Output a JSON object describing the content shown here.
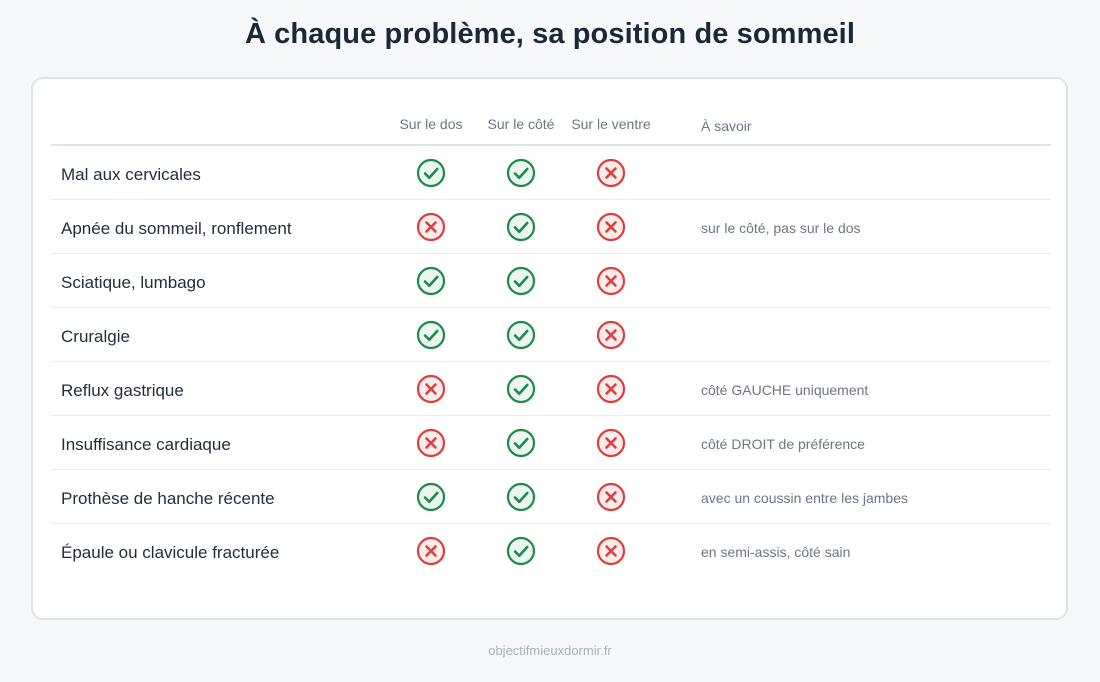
{
  "title": "À chaque problème, sa position de sommeil",
  "columns": [
    "Sur le dos",
    "Sur le côté",
    "Sur le ventre",
    "À savoir"
  ],
  "colors": {
    "yes": "#1f8a4c",
    "yes_fill": "#eaf6ef",
    "no": "#d9413e",
    "no_fill": "#fcecec"
  },
  "icons": {
    "yes": "check-circle-icon",
    "no": "x-circle-icon"
  },
  "rows": [
    {
      "label": "Mal aux cervicales",
      "values": [
        "yes",
        "yes",
        "no"
      ],
      "note": ""
    },
    {
      "label": "Apnée du sommeil, ronflement",
      "values": [
        "no",
        "yes",
        "no"
      ],
      "note": "sur le côté, pas sur le dos"
    },
    {
      "label": "Sciatique, lumbago",
      "values": [
        "yes",
        "yes",
        "no"
      ],
      "note": ""
    },
    {
      "label": "Cruralgie",
      "values": [
        "yes",
        "yes",
        "no"
      ],
      "note": ""
    },
    {
      "label": "Reflux gastrique",
      "values": [
        "no",
        "yes",
        "no"
      ],
      "note": "côté GAUCHE uniquement"
    },
    {
      "label": "Insuffisance cardiaque",
      "values": [
        "no",
        "yes",
        "no"
      ],
      "note": "côté DROIT de préférence"
    },
    {
      "label": "Prothèse de hanche récente",
      "values": [
        "yes",
        "yes",
        "no"
      ],
      "note": "avec un coussin entre les jambes"
    },
    {
      "label": "Épaule ou clavicule fracturée",
      "values": [
        "no",
        "yes",
        "no"
      ],
      "note": "en semi-assis, côté sain"
    }
  ],
  "footer": "objectifmieuxdormir.fr"
}
